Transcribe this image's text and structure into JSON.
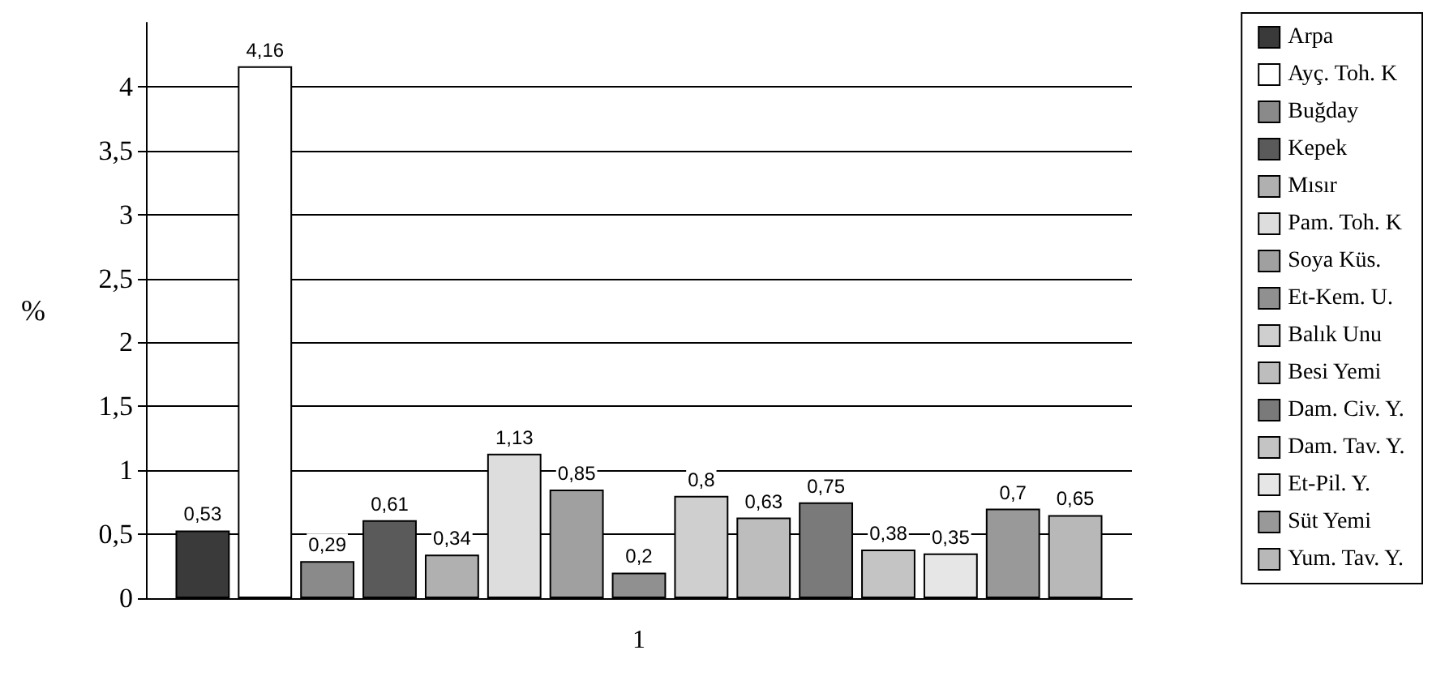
{
  "chart_data": {
    "type": "bar",
    "ylabel": "%",
    "categories": [
      "1"
    ],
    "ylim": [
      0,
      4.5
    ],
    "yticks": [
      0,
      {
        "value": 0.5,
        "label": "0,5"
      },
      1,
      {
        "value": 1.5,
        "label": "1,5"
      },
      2,
      {
        "value": 2.5,
        "label": "2,5"
      },
      3,
      {
        "value": 3.5,
        "label": "3,5"
      },
      4
    ],
    "grid": "y",
    "legend": "right",
    "series": [
      {
        "name": "Arpa",
        "color": "#3a3a3a",
        "values": [
          0.53
        ],
        "value_labels": [
          "0,53"
        ]
      },
      {
        "name": "Ayç. Toh. K",
        "color": "#ffffff",
        "values": [
          4.16
        ],
        "value_labels": [
          "4,16"
        ]
      },
      {
        "name": "Buğday",
        "color": "#8a8a8a",
        "values": [
          0.29
        ],
        "value_labels": [
          "0,29"
        ]
      },
      {
        "name": "Kepek",
        "color": "#5a5a5a",
        "values": [
          0.61
        ],
        "value_labels": [
          "0,61"
        ]
      },
      {
        "name": "Mısır",
        "color": "#b0b0b0",
        "values": [
          0.34
        ],
        "value_labels": [
          "0,34"
        ]
      },
      {
        "name": "Pam. Toh. K",
        "color": "#dddddd",
        "values": [
          1.13
        ],
        "value_labels": [
          "1,13"
        ]
      },
      {
        "name": "Soya Küs.",
        "color": "#a0a0a0",
        "values": [
          0.85
        ],
        "value_labels": [
          "0,85"
        ]
      },
      {
        "name": "Et-Kem. U.",
        "color": "#909090",
        "values": [
          0.2
        ],
        "value_labels": [
          "0,2"
        ]
      },
      {
        "name": "Balık Unu",
        "color": "#cfcfcf",
        "values": [
          0.8
        ],
        "value_labels": [
          "0,8"
        ]
      },
      {
        "name": "Besi Yemi",
        "color": "#bdbdbd",
        "values": [
          0.63
        ],
        "value_labels": [
          "0,63"
        ]
      },
      {
        "name": "Dam. Civ. Y.",
        "color": "#7a7a7a",
        "values": [
          0.75
        ],
        "value_labels": [
          "0,75"
        ]
      },
      {
        "name": "Dam. Tav. Y.",
        "color": "#c4c4c4",
        "values": [
          0.38
        ],
        "value_labels": [
          "0,38"
        ]
      },
      {
        "name": "Et-Pil. Y.",
        "color": "#e6e6e6",
        "values": [
          0.35
        ],
        "value_labels": [
          "0,35"
        ]
      },
      {
        "name": "Süt Yemi",
        "color": "#999999",
        "values": [
          0.7
        ],
        "value_labels": [
          "0,7"
        ]
      },
      {
        "name": "Yum. Tav. Y.",
        "color": "#b8b8b8",
        "values": [
          0.65
        ],
        "value_labels": [
          "0,65"
        ]
      }
    ]
  }
}
